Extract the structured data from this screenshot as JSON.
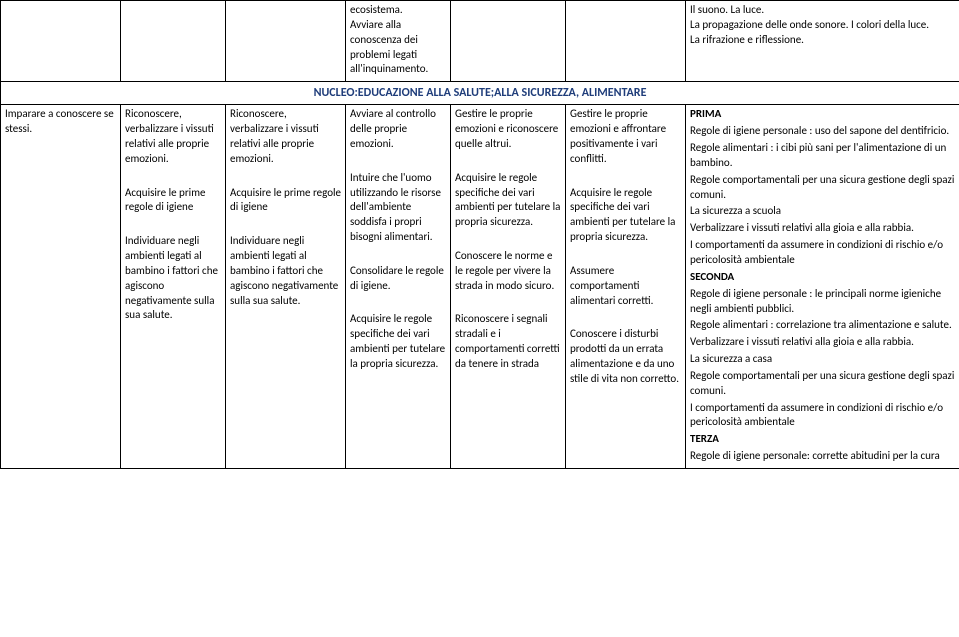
{
  "topRow": {
    "col3": "ecosistema.\nAvviare alla conoscenza dei problemi legati all'inquinamento.",
    "col6": "Il suono. La luce.\nLa propagazione delle onde sonore. I colori della luce.\nLa rifrazione e riflessione."
  },
  "nucleo": "NUCLEO:EDUCAZIONE ALLA SALUTE;ALLA SICUREZZA, ALIMENTARE",
  "row2": {
    "c0": "Imparare a conoscere se stessi.",
    "c1a": "Riconoscere, verbalizzare i vissuti relativi alle proprie emozioni.",
    "c1b": "Acquisire le prime regole di igiene",
    "c1c": "Individuare negli ambienti legati al bambino i fattori che agiscono negativamente sulla sua salute.",
    "c2a": "Riconoscere, verbalizzare i vissuti relativi alle proprie emozioni.",
    "c2b": "Acquisire le prime regole di igiene",
    "c2c": "Individuare negli ambienti legati al bambino i fattori che agiscono negativamente sulla sua salute.",
    "c3a": "Avviare al controllo delle proprie emozioni.",
    "c3b": "Intuire che l'uomo utilizzando le risorse dell'ambiente soddisfa i propri bisogni alimentari.",
    "c3c": "Consolidare le regole di igiene.",
    "c3d": "Acquisire le regole specifiche dei vari ambienti  per tutelare la propria sicurezza.",
    "c4a": "Gestire le proprie emozioni e riconoscere quelle altrui.",
    "c4b": "Acquisire le regole specifiche dei vari ambienti  per tutelare la propria sicurezza.",
    "c4c": "Conoscere le norme e le regole per vivere la strada in modo sicuro.",
    "c4d": "Riconoscere i segnali stradali e i comportamenti corretti da tenere in strada",
    "c5a": "Gestire le proprie emozioni e affrontare positivamente i vari conflitti.",
    "c5b": "  Acquisire le regole specifiche dei vari ambienti  per tutelare la propria sicurezza.",
    "c5c": "Assumere comportamenti alimentari corretti.",
    "c5d": "Conoscere i disturbi prodotti da un errata alimentazione e da uno stile di vita non corretto.",
    "c6_prima": "PRIMA",
    "c6_p1": "Regole di igiene personale : uso del sapone del dentifricio.",
    "c6_p2": "Regole  alimentari : i cibi più sani per  l'alimentazione di un bambino.",
    "c6_p3": "Regole comportamentali per una sicura gestione degli spazi comuni.",
    "c6_p4": "La sicurezza a scuola",
    "c6_p5": "Verbalizzare i vissuti relativi alla gioia e alla rabbia.",
    "c6_p6": "I comportamenti da assumere in condizioni di rischio e/o pericolosità ambientale",
    "c6_seconda": "SECONDA",
    "c6_s1": "Regole  di igiene personale : le principali norme igieniche negli ambienti pubblici.",
    "c6_s2": "Regole  alimentari : correlazione tra alimentazione e salute.",
    "c6_s3": "Verbalizzare i vissuti relativi alla gioia e alla rabbia.",
    "c6_s4": "La sicurezza a casa",
    "c6_s5": "Regole comportamentali per una sicura gestione degli spazi comuni.",
    "c6_s6": "  I comportamenti da assumere in condizioni di rischio e/o pericolosità ambientale",
    "c6_terza": "TERZA",
    "c6_t1": "Regole di igiene personale: corrette abitudini per la cura"
  }
}
